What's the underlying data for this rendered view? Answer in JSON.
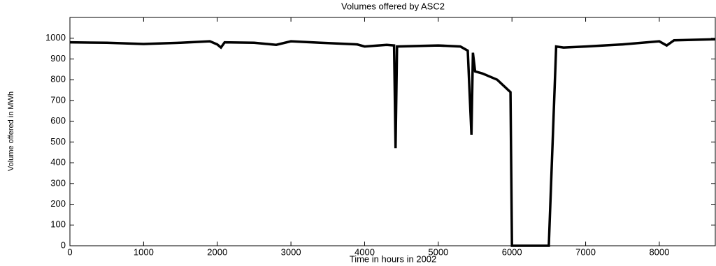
{
  "chart_data": {
    "type": "line",
    "title": "Volumes offered by  ASC2",
    "x_label": "Time in hours in 2002",
    "y_label": "Volume offered in MWh",
    "x": [
      0,
      500,
      1000,
      1500,
      1900,
      2000,
      2050,
      2100,
      2500,
      2800,
      3000,
      3400,
      3900,
      4000,
      4300,
      4400,
      4420,
      4440,
      5000,
      5300,
      5400,
      5450,
      5470,
      5500,
      5600,
      5800,
      5950,
      5980,
      6000,
      6500,
      6600,
      6700,
      7000,
      7500,
      8000,
      8100,
      8200,
      8760
    ],
    "values": [
      980,
      978,
      972,
      978,
      985,
      970,
      955,
      980,
      978,
      968,
      985,
      978,
      970,
      960,
      968,
      965,
      470,
      960,
      965,
      960,
      940,
      535,
      930,
      840,
      830,
      800,
      750,
      740,
      0,
      0,
      960,
      955,
      960,
      970,
      985,
      965,
      990,
      995
    ],
    "color": "#000000",
    "xlim": [
      0,
      8760
    ],
    "ylim": [
      0,
      1100
    ],
    "xticks": [
      0,
      1000,
      2000,
      3000,
      4000,
      5000,
      6000,
      7000,
      8000
    ],
    "yticks": [
      0,
      100,
      200,
      300,
      400,
      500,
      600,
      700,
      800,
      900,
      1000
    ]
  }
}
